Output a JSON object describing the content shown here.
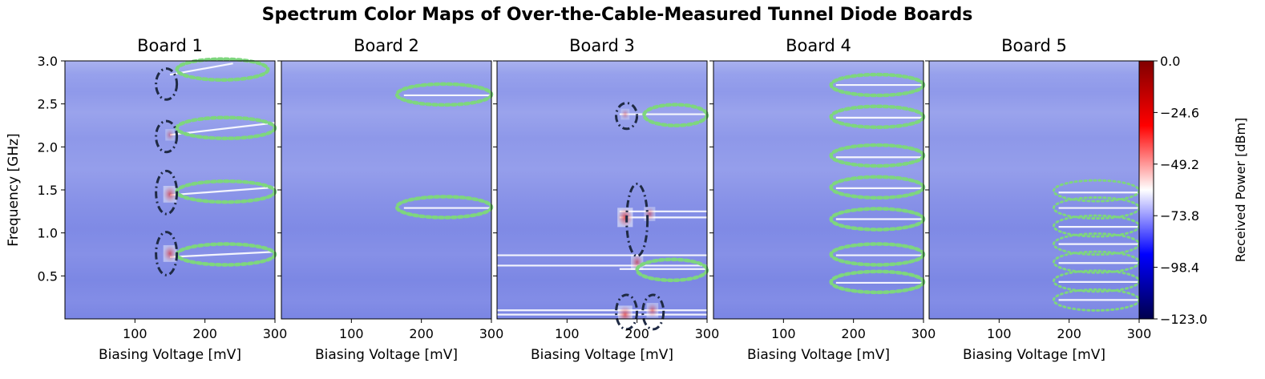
{
  "chart_data": {
    "type": "heatmap",
    "title": "Spectrum Color Maps of Over-the-Cable-Measured Tunnel Diode Boards",
    "ylabel": "Frequency [GHz]",
    "xlim": [
      0,
      300
    ],
    "ylim": [
      0,
      3.0
    ],
    "y_ticks": [
      "0.5",
      "1.0",
      "1.5",
      "2.0",
      "2.5",
      "3.0"
    ],
    "colorbar": {
      "label": "Received Power [dBm]",
      "range": [
        -123.0,
        0.0
      ],
      "ticks": [
        "0.0",
        "−24.6",
        "−49.2",
        "−73.8",
        "−98.4",
        "−123.0"
      ],
      "colormap": "seismic"
    },
    "colors": {
      "background": "#8a94ea",
      "oscillation_marker": "#7ed67e",
      "spur_marker": "#1f2a44",
      "hot": "#e03a3a"
    },
    "panels": [
      {
        "title": "Board 1",
        "xlabel": "Biasing Voltage [mV]",
        "x_ticks": [
          "100",
          "200",
          "300"
        ],
        "lines": [
          {
            "x0": 150,
            "x1": 300,
            "f0": 0.72,
            "f1": 0.78
          },
          {
            "x0": 150,
            "x1": 300,
            "f0": 1.44,
            "f1": 1.53
          },
          {
            "x0": 150,
            "x1": 300,
            "f0": 2.14,
            "f1": 2.28
          },
          {
            "x0": 150,
            "x1": 240,
            "f0": 2.84,
            "f1": 2.97
          }
        ],
        "hot_spots": [
          {
            "x": 150,
            "f": 0.76,
            "level": 0.55
          },
          {
            "x": 150,
            "f": 1.45,
            "level": 0.55
          },
          {
            "x": 150,
            "f": 2.14,
            "level": 0.15
          }
        ],
        "green_ellipses": [
          {
            "x0": 160,
            "x1": 300,
            "f": 0.75
          },
          {
            "x0": 160,
            "x1": 300,
            "f": 1.48
          },
          {
            "x0": 160,
            "x1": 300,
            "f": 2.22
          },
          {
            "x0": 160,
            "x1": 290,
            "f": 2.9
          }
        ],
        "dark_ellipses": [
          {
            "x": 145,
            "f": 0.76,
            "rf": 0.25
          },
          {
            "x": 145,
            "f": 1.47,
            "rf": 0.25
          },
          {
            "x": 145,
            "f": 2.12,
            "rf": 0.18
          },
          {
            "x": 145,
            "f": 2.73,
            "rf": 0.18
          }
        ]
      },
      {
        "title": "Board 2",
        "xlabel": "Biasing Voltage [mV]",
        "x_ticks": [
          "100",
          "200",
          "300"
        ],
        "lines": [
          {
            "x0": 175,
            "x1": 300,
            "f0": 1.29,
            "f1": 1.29
          },
          {
            "x0": 175,
            "x1": 300,
            "f0": 2.6,
            "f1": 2.6
          }
        ],
        "hot_spots": [],
        "green_ellipses": [
          {
            "x0": 165,
            "x1": 300,
            "f": 1.3
          },
          {
            "x0": 165,
            "x1": 300,
            "f": 2.61
          }
        ],
        "dark_ellipses": []
      },
      {
        "title": "Board 3",
        "xlabel": "Biasing Voltage [mV]",
        "x_ticks": [
          "100",
          "200",
          "300"
        ],
        "lines": [
          {
            "x0": 175,
            "x1": 300,
            "f0": 2.38,
            "f1": 2.38
          },
          {
            "x0": 175,
            "x1": 300,
            "f0": 1.25,
            "f1": 1.25
          },
          {
            "x0": 175,
            "x1": 300,
            "f0": 1.18,
            "f1": 1.18
          },
          {
            "x0": 175,
            "x1": 300,
            "f0": 0.58,
            "f1": 0.58
          },
          {
            "x0": 0,
            "x1": 300,
            "f0": 0.74,
            "f1": 0.74
          },
          {
            "x0": 0,
            "x1": 300,
            "f0": 0.62,
            "f1": 0.62
          },
          {
            "x0": 0,
            "x1": 300,
            "f0": 0.1,
            "f1": 0.1
          },
          {
            "x0": 0,
            "x1": 300,
            "f0": 0.05,
            "f1": 0.05
          }
        ],
        "hot_spots": [
          {
            "x": 183,
            "f": 1.18,
            "level": 0.75
          },
          {
            "x": 218,
            "f": 1.22,
            "level": 0.35
          },
          {
            "x": 183,
            "f": 0.05,
            "level": 0.65
          },
          {
            "x": 222,
            "f": 0.1,
            "level": 0.4
          },
          {
            "x": 200,
            "f": 0.66,
            "level": 0.45
          },
          {
            "x": 183,
            "f": 2.38,
            "level": 0.1
          }
        ],
        "green_ellipses": [
          {
            "x0": 210,
            "x1": 300,
            "f": 2.37
          },
          {
            "x0": 200,
            "x1": 300,
            "f": 0.57
          }
        ],
        "dark_ellipses": [
          {
            "x": 185,
            "f": 2.36,
            "rf": 0.15
          },
          {
            "x": 200,
            "f": 1.15,
            "rf": 0.42
          },
          {
            "x": 185,
            "f": 0.08,
            "rf": 0.2
          },
          {
            "x": 223,
            "f": 0.08,
            "rf": 0.2
          }
        ]
      },
      {
        "title": "Board 4",
        "xlabel": "Biasing Voltage [mV]",
        "x_ticks": [
          "100",
          "200",
          "300"
        ],
        "lines": [
          {
            "x0": 175,
            "x1": 300,
            "f0": 0.42,
            "f1": 0.42
          },
          {
            "x0": 175,
            "x1": 300,
            "f0": 0.74,
            "f1": 0.74
          },
          {
            "x0": 175,
            "x1": 300,
            "f0": 1.16,
            "f1": 1.16
          },
          {
            "x0": 175,
            "x1": 300,
            "f0": 1.52,
            "f1": 1.52
          },
          {
            "x0": 175,
            "x1": 300,
            "f0": 1.88,
            "f1": 1.88
          },
          {
            "x0": 175,
            "x1": 300,
            "f0": 2.34,
            "f1": 2.34
          },
          {
            "x0": 175,
            "x1": 300,
            "f0": 2.72,
            "f1": 2.72
          }
        ],
        "hot_spots": [],
        "green_ellipses": [
          {
            "x0": 168,
            "x1": 300,
            "f": 0.43
          },
          {
            "x0": 168,
            "x1": 300,
            "f": 0.75
          },
          {
            "x0": 168,
            "x1": 300,
            "f": 1.16
          },
          {
            "x0": 168,
            "x1": 300,
            "f": 1.53
          },
          {
            "x0": 168,
            "x1": 300,
            "f": 1.9
          },
          {
            "x0": 168,
            "x1": 300,
            "f": 2.35
          },
          {
            "x0": 168,
            "x1": 300,
            "f": 2.72
          }
        ],
        "dark_ellipses": []
      },
      {
        "title": "Board 5",
        "xlabel": "Biasing Voltage [mV]",
        "x_ticks": [
          "100",
          "200",
          "300"
        ],
        "lines": [
          {
            "x0": 185,
            "x1": 300,
            "f0": 0.22,
            "f1": 0.22
          },
          {
            "x0": 185,
            "x1": 300,
            "f0": 0.43,
            "f1": 0.43
          },
          {
            "x0": 185,
            "x1": 300,
            "f0": 0.65,
            "f1": 0.65
          },
          {
            "x0": 185,
            "x1": 300,
            "f0": 0.87,
            "f1": 0.87
          },
          {
            "x0": 185,
            "x1": 300,
            "f0": 1.07,
            "f1": 1.07
          },
          {
            "x0": 185,
            "x1": 300,
            "f0": 1.29,
            "f1": 1.29
          },
          {
            "x0": 185,
            "x1": 300,
            "f0": 1.47,
            "f1": 1.47
          }
        ],
        "hot_spots": [],
        "green_ellipses": [
          {
            "x0": 178,
            "x1": 300,
            "f": 0.22
          },
          {
            "x0": 178,
            "x1": 300,
            "f": 0.44
          },
          {
            "x0": 178,
            "x1": 300,
            "f": 0.66
          },
          {
            "x0": 178,
            "x1": 300,
            "f": 0.87
          },
          {
            "x0": 178,
            "x1": 300,
            "f": 1.08
          },
          {
            "x0": 178,
            "x1": 300,
            "f": 1.29
          },
          {
            "x0": 178,
            "x1": 300,
            "f": 1.49
          }
        ],
        "dark_ellipses": []
      }
    ]
  }
}
